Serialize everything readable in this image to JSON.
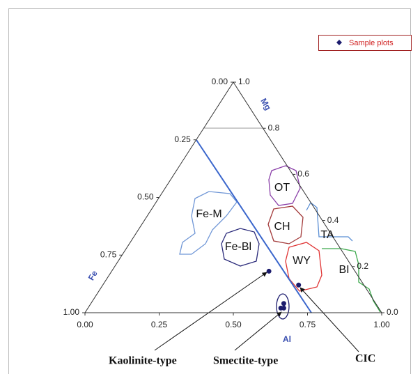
{
  "chart_data": {
    "type": "ternary",
    "axes": {
      "bottom": {
        "label": "Al",
        "ticks": [
          {
            "value": 0,
            "label": "0.00"
          },
          0.25,
          {
            "value": 0.5,
            "label": "0.50"
          },
          0.75,
          {
            "value": 1,
            "label": "1.00"
          }
        ]
      },
      "left": {
        "label": "Fe",
        "ticks": [
          {
            "value": 1,
            "label": "1.00"
          },
          0.75,
          {
            "value": 0.5,
            "label": "0.50"
          },
          0.25,
          {
            "value": 0,
            "label": "0.00"
          }
        ]
      },
      "right": {
        "label": "Mg",
        "ticks": [
          {
            "value": 1,
            "label": "1.0"
          },
          0.8,
          0.6,
          0.4,
          0.2,
          {
            "value": 0,
            "label": "0.0"
          }
        ]
      }
    },
    "series": [
      {
        "name": "Sample plots",
        "color": "#1c1c6e",
        "al": [
          0.53,
          0.66,
          0.65,
          0.66,
          0.65
        ],
        "mg": [
          0.18,
          0.12,
          0.04,
          0.02,
          0.02
        ],
        "fe": [
          0.29,
          0.22,
          0.31,
          0.32,
          0.33
        ]
      }
    ],
    "legend": "upper right",
    "regions": [
      "OT",
      "CH",
      "TA",
      "WY",
      "BI",
      "Fe-M",
      "Fe-Bl"
    ],
    "annotations": [
      "Kaolinite-type",
      "Smectite-type",
      "CIC"
    ]
  }
}
